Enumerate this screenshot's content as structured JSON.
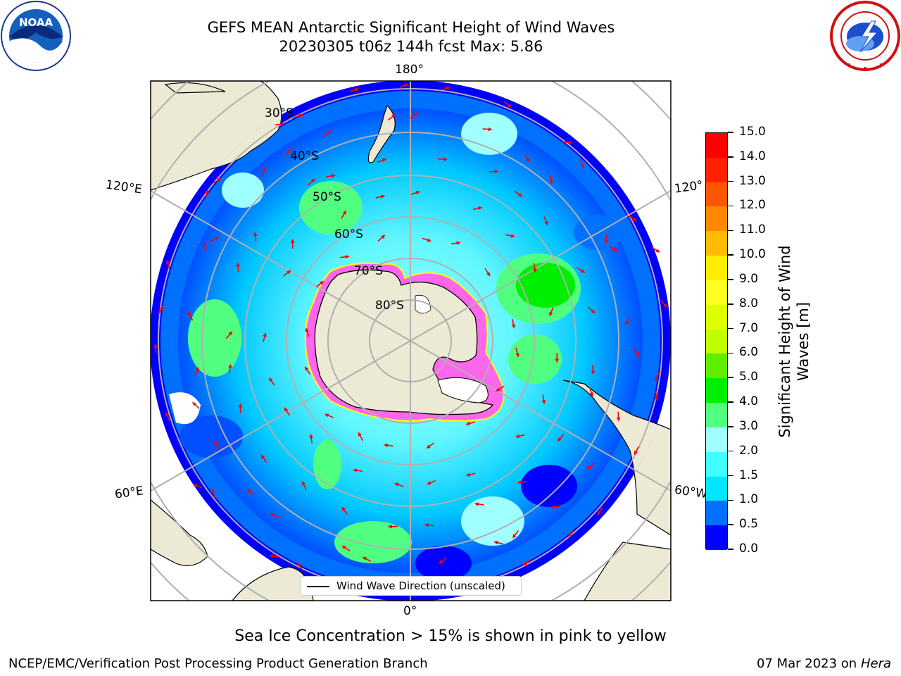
{
  "title_line1": "GEFS MEAN Antarctic Significant Height of Wind Waves",
  "title_line2": "20230305 t06z 144h fcst   Max: 5.86",
  "map": {
    "lon_labels": {
      "top": "180°",
      "bottom": "0°",
      "left_upper": "120°E",
      "left_lower": "60°E",
      "right_upper": "120°",
      "right_lower": "60°W"
    },
    "lat_labels": [
      "30°S",
      "40°S",
      "50°S",
      "60°S",
      "70°S",
      "80°S"
    ],
    "legend": "Wind Wave Direction (unscaled)",
    "colors": {
      "land": "#ecead5",
      "ocean_low": "#0000ff",
      "arrow": "#ff0000",
      "ice": "#ff66ee",
      "ice_edge": "#ffff00",
      "grid": "#b0b0b0"
    }
  },
  "colorbar": {
    "title": "Significant Height of Wind Waves [m]",
    "ticks": [
      "0.0",
      "0.5",
      "1.0",
      "1.5",
      "2.0",
      "3.0",
      "4.0",
      "5.0",
      "6.0",
      "7.0",
      "8.0",
      "9.0",
      "10.0",
      "11.0",
      "12.0",
      "13.0",
      "14.0",
      "15.0"
    ],
    "colors": [
      "#0000ff",
      "#0070ff",
      "#00e6ff",
      "#40ffff",
      "#a0ffff",
      "#50ff80",
      "#00ee00",
      "#60ee00",
      "#c0ff00",
      "#ddff00",
      "#ffff20",
      "#ffee00",
      "#ffbb00",
      "#ff8800",
      "#ff5500",
      "#ff2200",
      "#ff0000"
    ]
  },
  "caption": "Sea Ice Concentration > 15% is shown in pink to yellow",
  "footer_left": "NCEP/EMC/Verification Post Processing Product Generation Branch",
  "footer_right_date": "07 Mar 2023 on",
  "footer_right_machine": "Hera",
  "logos": {
    "left": "noaa-logo",
    "right": "nws-logo",
    "left_text": "NOAA"
  }
}
